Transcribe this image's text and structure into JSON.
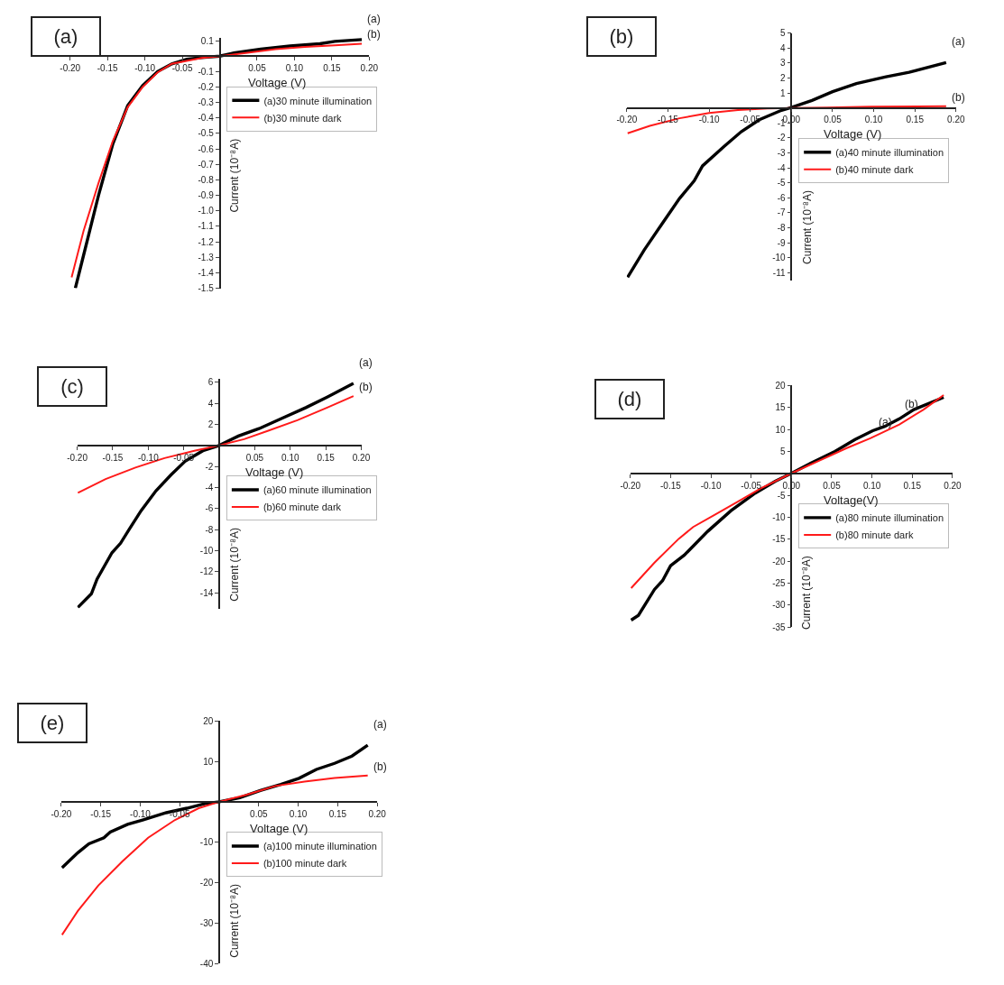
{
  "chart_data": [
    {
      "type": "line",
      "title": "(a)",
      "xlabel": "Voltage (V)",
      "ylabel": "Current (10⁻⁸A)",
      "legend": "right",
      "xlim": [
        -0.2,
        0.2
      ],
      "ylim": [
        -1.5,
        0.12
      ],
      "xticks": [
        {
          "value": -0.2,
          "label": "-0.20"
        },
        {
          "value": -0.15,
          "label": "-0.15"
        },
        {
          "value": -0.1,
          "label": "-0.10"
        },
        {
          "value": -0.05,
          "label": "-0.05"
        },
        {
          "value": 0.05,
          "label": "0.05"
        },
        {
          "value": 0.1,
          "label": "0.10"
        },
        {
          "value": 0.15,
          "label": "0.15"
        },
        {
          "value": 0.2,
          "label": "0.20"
        }
      ],
      "yticks": [
        0.1,
        -0.1,
        -0.2,
        -0.3,
        -0.4,
        -0.5,
        -0.6,
        -0.7,
        -0.8,
        -0.9,
        {
          "value": -1,
          "label": "-1.0"
        },
        -1.1,
        -1.2,
        -1.3,
        -1.4,
        -1.5
      ],
      "series": [
        {
          "name": "(a)30 minute illumination",
          "color": "#000000",
          "x": [
            -0.193,
            -0.178,
            -0.162,
            -0.143,
            -0.123,
            -0.103,
            -0.083,
            -0.064,
            -0.044,
            -0.024,
            0,
            0.019,
            0.055,
            0.094,
            0.134,
            0.154,
            0.19
          ],
          "values": [
            -1.5,
            -1.21,
            -0.9,
            -0.57,
            -0.32,
            -0.19,
            -0.1,
            -0.05,
            -0.02,
            -0.01,
            0,
            0.02,
            0.045,
            0.065,
            0.08,
            0.095,
            0.107
          ]
        },
        {
          "name": "(b)30 minute dark",
          "color": "#ff1a1a",
          "x": [
            -0.198,
            -0.182,
            -0.162,
            -0.143,
            -0.123,
            -0.103,
            -0.083,
            -0.064,
            -0.024,
            0,
            0.035,
            0.075,
            0.114,
            0.154,
            0.19
          ],
          "values": [
            -1.43,
            -1.13,
            -0.82,
            -0.55,
            -0.33,
            -0.2,
            -0.105,
            -0.05,
            -0.012,
            0,
            0.02,
            0.045,
            0.06,
            0.07,
            0.08
          ]
        }
      ],
      "annotations": [
        {
          "text": "(a)",
          "x": 0.19,
          "y": 0.107
        },
        {
          "text": "(b)",
          "x": 0.19,
          "y": 0.08
        }
      ]
    },
    {
      "type": "line",
      "title": "(b)",
      "xlabel": "Voltage (V)",
      "ylabel": "Current (10⁻⁸A)",
      "legend": "right",
      "xlim": [
        -0.2,
        0.2
      ],
      "ylim": [
        -11.5,
        5
      ],
      "xticks": [
        {
          "value": -0.2,
          "label": "-0.20"
        },
        {
          "value": -0.15,
          "label": "-0.15"
        },
        {
          "value": -0.1,
          "label": "-0.10"
        },
        {
          "value": -0.05,
          "label": "-0.05"
        },
        {
          "value": 0,
          "label": "0.00"
        },
        {
          "value": 0.05,
          "label": "0.05"
        },
        {
          "value": 0.1,
          "label": "0.10"
        },
        {
          "value": 0.15,
          "label": "0.15"
        },
        {
          "value": 0.2,
          "label": "0.20"
        }
      ],
      "yticks": [
        5,
        4,
        3,
        2,
        1,
        -1,
        -2,
        -3,
        -4,
        -5,
        -6,
        -7,
        -8,
        -9,
        -10,
        -11
      ],
      "series": [
        {
          "name": "(a)40 minute illumination",
          "color": "#000000",
          "x": [
            -0.199,
            -0.179,
            -0.158,
            -0.136,
            -0.118,
            -0.108,
            -0.082,
            -0.061,
            -0.039,
            -0.014,
            0,
            0.025,
            0.05,
            0.079,
            0.115,
            0.143,
            0.188
          ],
          "values": [
            -11.3,
            -9.5,
            -7.8,
            -6.05,
            -4.86,
            -3.87,
            -2.58,
            -1.59,
            -0.79,
            -0.2,
            0.04,
            0.5,
            1.09,
            1.63,
            2.08,
            2.38,
            3.03
          ]
        },
        {
          "name": "(b)40 minute dark",
          "color": "#ff1a1a",
          "x": [
            -0.199,
            -0.172,
            -0.136,
            -0.1,
            -0.065,
            -0.029,
            0,
            0.043,
            0.097,
            0.188
          ],
          "values": [
            -1.69,
            -1.19,
            -0.69,
            -0.34,
            -0.14,
            -0.04,
            0,
            0.02,
            0.08,
            0.12
          ]
        }
      ],
      "annotations": [
        {
          "text": "(a)",
          "x": 0.188,
          "y": 3.03
        },
        {
          "text": "(b)",
          "x": 0.188,
          "y": 0.12
        }
      ]
    },
    {
      "type": "line",
      "title": "(c)",
      "xlabel": "Voltage (V)",
      "ylabel": "Current (10⁻⁸A)",
      "legend": "right",
      "xlim": [
        -0.2,
        0.2
      ],
      "ylim": [
        -15.5,
        6.3
      ],
      "xticks": [
        {
          "value": -0.2,
          "label": "-0.20"
        },
        {
          "value": -0.15,
          "label": "-0.15"
        },
        {
          "value": -0.1,
          "label": "-0.10"
        },
        {
          "value": -0.05,
          "label": "-0.05"
        },
        {
          "value": 0.05,
          "label": "0.05"
        },
        {
          "value": 0.1,
          "label": "0.10"
        },
        {
          "value": 0.15,
          "label": "0.15"
        },
        {
          "value": 0.2,
          "label": "0.20"
        }
      ],
      "yticks": [
        6,
        4,
        2,
        -2,
        -4,
        -6,
        -8,
        -10,
        -12,
        -14
      ],
      "series": [
        {
          "name": "(a)60 minute illumination",
          "color": "#000000",
          "x": [
            -0.199,
            -0.18,
            -0.172,
            -0.151,
            -0.139,
            -0.126,
            -0.11,
            -0.089,
            -0.068,
            -0.048,
            -0.023,
            0,
            0.027,
            0.056,
            0.089,
            0.122,
            0.152,
            0.189
          ],
          "values": [
            -15.4,
            -14.1,
            -12.7,
            -10.2,
            -9.3,
            -7.9,
            -6.2,
            -4.3,
            -2.8,
            -1.5,
            -0.5,
            0,
            0.9,
            1.6,
            2.6,
            3.6,
            4.6,
            5.9
          ]
        },
        {
          "name": "(b)60 minute dark",
          "color": "#ff1a1a",
          "x": [
            -0.199,
            -0.16,
            -0.118,
            -0.077,
            -0.035,
            0,
            0.035,
            0.069,
            0.11,
            0.152,
            0.189
          ],
          "values": [
            -4.5,
            -3.2,
            -2.1,
            -1.2,
            -0.5,
            0,
            0.6,
            1.4,
            2.4,
            3.6,
            4.7
          ]
        }
      ],
      "annotations": [
        {
          "text": "(a)",
          "x": 0.189,
          "y": 5.9
        },
        {
          "text": "(b)",
          "x": 0.189,
          "y": 4.7
        }
      ]
    },
    {
      "type": "line",
      "title": "(d)",
      "xlabel": "Voltage(V)",
      "ylabel": "Current (10⁻⁸A)",
      "legend": "right",
      "xlim": [
        -0.2,
        0.2
      ],
      "ylim": [
        -35,
        20
      ],
      "xticks": [
        {
          "value": -0.2,
          "label": "-0.20"
        },
        {
          "value": -0.15,
          "label": "-0.15"
        },
        {
          "value": -0.1,
          "label": "-0.10"
        },
        {
          "value": -0.05,
          "label": "-0.05"
        },
        {
          "value": 0,
          "label": "0.00"
        },
        {
          "value": 0.05,
          "label": "0.05"
        },
        {
          "value": 0.1,
          "label": "0.10"
        },
        {
          "value": 0.15,
          "label": "0.15"
        },
        {
          "value": 0.2,
          "label": "0.20"
        }
      ],
      "yticks": [
        20,
        15,
        10,
        5,
        -5,
        -10,
        -15,
        -20,
        -25,
        -30,
        -35
      ],
      "series": [
        {
          "name": "(a)80 minute illumination",
          "color": "#000000",
          "x": [
            -0.199,
            -0.19,
            -0.17,
            -0.16,
            -0.15,
            -0.133,
            -0.104,
            -0.075,
            -0.045,
            -0.02,
            0,
            0.024,
            0.054,
            0.079,
            0.101,
            0.116,
            0.134,
            0.152,
            0.189
          ],
          "values": [
            -33.4,
            -32.3,
            -26.4,
            -24.4,
            -21.0,
            -18.6,
            -13.2,
            -8.5,
            -4.5,
            -1.8,
            0,
            2.3,
            5.0,
            7.7,
            9.7,
            10.7,
            12.4,
            14.5,
            17.3
          ]
        },
        {
          "name": "(b)80 minute dark",
          "color": "#ff1a1a",
          "x": [
            -0.199,
            -0.17,
            -0.14,
            -0.122,
            -0.096,
            -0.067,
            -0.038,
            0,
            0.036,
            0.068,
            0.098,
            0.134,
            0.164,
            0.189
          ],
          "values": [
            -26.1,
            -20.3,
            -14.9,
            -12.2,
            -9.5,
            -6.5,
            -3.4,
            0,
            3.0,
            5.7,
            8.0,
            11.1,
            14.5,
            17.8
          ]
        }
      ],
      "annotations": [
        {
          "text": "(a)",
          "x": 0.101,
          "y": 9.7
        },
        {
          "text": "(b)",
          "x": 0.134,
          "y": 11.1
        }
      ]
    },
    {
      "type": "line",
      "title": "(e)",
      "xlabel": "Voltage (V)",
      "ylabel": "Current (10⁻⁸A)",
      "legend": "right",
      "xlim": [
        -0.2,
        0.2
      ],
      "ylim": [
        -40,
        20
      ],
      "xticks": [
        {
          "value": -0.2,
          "label": "-0.20"
        },
        {
          "value": -0.15,
          "label": "-0.15"
        },
        {
          "value": -0.1,
          "label": "-0.10"
        },
        {
          "value": -0.05,
          "label": "-0.05"
        },
        {
          "value": 0.05,
          "label": "0.05"
        },
        {
          "value": 0.1,
          "label": "0.10"
        },
        {
          "value": 0.15,
          "label": "0.15"
        },
        {
          "value": 0.2,
          "label": "0.20"
        }
      ],
      "yticks": [
        20,
        10,
        -10,
        -20,
        -30,
        -40
      ],
      "series": [
        {
          "name": "(a)100 minute illumination",
          "color": "#000000",
          "x": [
            -0.199,
            -0.179,
            -0.165,
            -0.146,
            -0.138,
            -0.116,
            -0.097,
            -0.067,
            -0.041,
            -0.019,
            0,
            0.026,
            0.052,
            0.078,
            0.101,
            0.123,
            0.146,
            0.168,
            0.188
          ],
          "values": [
            -16.3,
            -12.6,
            -10.4,
            -8.9,
            -7.5,
            -5.6,
            -4.5,
            -2.7,
            -1.6,
            -0.5,
            0,
            1.0,
            2.8,
            4.3,
            5.8,
            8.0,
            9.5,
            11.3,
            14.0
          ]
        },
        {
          "name": "(b)100 minute dark",
          "color": "#ff1a1a",
          "x": [
            -0.199,
            -0.179,
            -0.153,
            -0.123,
            -0.09,
            -0.056,
            -0.026,
            0,
            0.034,
            0.071,
            0.108,
            0.146,
            0.188
          ],
          "values": [
            -32.9,
            -27.0,
            -20.7,
            -14.8,
            -8.9,
            -4.5,
            -1.6,
            0,
            1.7,
            3.9,
            5.0,
            5.9,
            6.5
          ]
        }
      ],
      "annotations": [
        {
          "text": "(a)",
          "x": 0.188,
          "y": 14.0
        },
        {
          "text": "(b)",
          "x": 0.188,
          "y": 6.5
        }
      ]
    }
  ]
}
